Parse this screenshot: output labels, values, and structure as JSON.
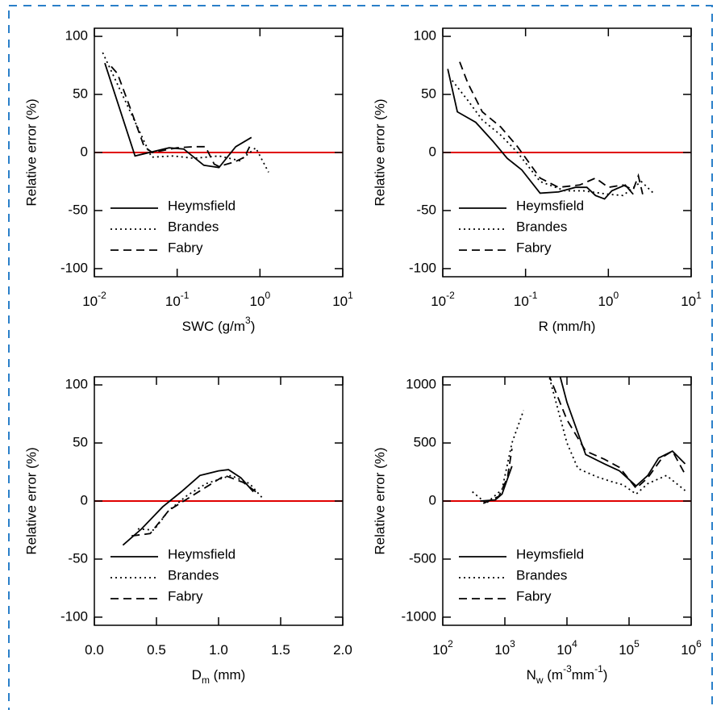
{
  "chart_data": [
    {
      "type": "line",
      "xscale": "log",
      "xlim": [
        0.01,
        10
      ],
      "ylim": [
        -107,
        107
      ],
      "xticks": [
        {
          "value": 0.01,
          "label": "10",
          "exponent": "-2"
        },
        {
          "value": 0.1,
          "label": "10",
          "exponent": "-1"
        },
        {
          "value": 1,
          "label": "10",
          "exponent": "0"
        },
        {
          "value": 10,
          "label": "10",
          "exponent": "1"
        }
      ],
      "yticks": [
        100,
        50,
        0,
        -50,
        -100
      ],
      "xlabel": [
        {
          "text": "SWC (g/m"
        },
        {
          "text": "3",
          "sup": true
        },
        {
          "text": ")"
        }
      ],
      "ylabel": "Relative error (%)",
      "reference_line": {
        "value": 0,
        "color": "#e00000"
      },
      "legend": "lower left",
      "series": [
        {
          "name": "Heymsfield",
          "color": "#000000",
          "dash": "solid",
          "x": [
            0.0134,
            0.031,
            0.08,
            0.12,
            0.21,
            0.32,
            0.51,
            0.79
          ],
          "values": [
            77,
            -3,
            4,
            3,
            -11,
            -13,
            5,
            13
          ]
        },
        {
          "name": "Brandes",
          "color": "#000000",
          "dash": "dotted",
          "x": [
            0.0126,
            0.049,
            0.09,
            0.16,
            0.32,
            0.57,
            0.89,
            1.27
          ],
          "values": [
            86,
            -4,
            -3,
            -5,
            -3,
            -7,
            4,
            -17
          ]
        },
        {
          "name": "Fabry",
          "color": "#000000",
          "dash": "dashed",
          "x": [
            0.016,
            0.019,
            0.025,
            0.04,
            0.05,
            0.1,
            0.16,
            0.22,
            0.28,
            0.32,
            0.5,
            0.65,
            0.75
          ],
          "values": [
            74,
            68,
            45,
            5,
            0,
            4,
            5,
            5,
            -10,
            -12,
            -8,
            -4,
            5
          ]
        }
      ]
    },
    {
      "type": "line",
      "xscale": "log",
      "xlim": [
        0.01,
        10
      ],
      "ylim": [
        -107,
        107
      ],
      "xticks": [
        {
          "value": 0.01,
          "label": "10",
          "exponent": "-2"
        },
        {
          "value": 0.1,
          "label": "10",
          "exponent": "-1"
        },
        {
          "value": 1,
          "label": "10",
          "exponent": "0"
        },
        {
          "value": 10,
          "label": "10",
          "exponent": "1"
        }
      ],
      "yticks": [
        100,
        50,
        0,
        -50,
        -100
      ],
      "xlabel": [
        {
          "text": "R (mm/h)"
        }
      ],
      "ylabel": "Relative error (%)",
      "reference_line": {
        "value": 0,
        "color": "#e00000"
      },
      "legend": "lower left",
      "series": [
        {
          "name": "Heymsfield",
          "color": "#000000",
          "dash": "solid",
          "x": [
            0.0115,
            0.015,
            0.025,
            0.04,
            0.06,
            0.09,
            0.15,
            0.25,
            0.4,
            0.55,
            0.7,
            0.9,
            1.1,
            1.6,
            2.0
          ],
          "values": [
            72,
            35,
            26,
            10,
            -5,
            -15,
            -35,
            -34,
            -30,
            -30,
            -37,
            -40,
            -33,
            -28,
            -36
          ]
        },
        {
          "name": "Brandes",
          "color": "#000000",
          "dash": "dotted",
          "x": [
            0.013,
            0.02,
            0.03,
            0.05,
            0.08,
            0.15,
            0.3,
            0.5,
            1.0,
            1.5,
            2.5,
            3.5
          ],
          "values": [
            62,
            45,
            28,
            15,
            0,
            -25,
            -33,
            -33,
            -36,
            -37,
            -25,
            -35
          ]
        },
        {
          "name": "Fabry",
          "color": "#000000",
          "dash": "dashed",
          "x": [
            0.016,
            0.02,
            0.03,
            0.05,
            0.08,
            0.15,
            0.25,
            0.45,
            0.7,
            1.0,
            1.5,
            2.0,
            2.3,
            2.6
          ],
          "values": [
            78,
            60,
            35,
            22,
            5,
            -22,
            -30,
            -28,
            -22,
            -30,
            -28,
            -32,
            -20,
            -36
          ]
        }
      ]
    },
    {
      "type": "line",
      "xscale": "linear",
      "xlim": [
        0,
        2
      ],
      "ylim": [
        -107,
        107
      ],
      "xticks": [
        {
          "value": 0,
          "label": "0.0"
        },
        0.5,
        {
          "value": 1,
          "label": "1.0"
        },
        1.5,
        {
          "value": 2,
          "label": "2.0"
        }
      ],
      "yticks": [
        100,
        50,
        0,
        -50,
        -100
      ],
      "xlabel": [
        {
          "text": "D"
        },
        {
          "text": "m",
          "sub": true
        },
        {
          "text": " (mm)"
        }
      ],
      "ylabel": "Relative error (%)",
      "reference_line": {
        "value": 0,
        "color": "#e00000"
      },
      "legend": "lower left",
      "series": [
        {
          "name": "Heymsfield",
          "color": "#000000",
          "dash": "solid",
          "x": [
            0.23,
            0.38,
            0.55,
            0.7,
            0.85,
            1.0,
            1.08,
            1.18,
            1.28
          ],
          "values": [
            -38,
            -24,
            -5,
            8,
            22,
            26,
            27,
            20,
            8
          ]
        },
        {
          "name": "Brandes",
          "color": "#000000",
          "dash": "dotted",
          "x": [
            0.35,
            0.48,
            0.6,
            0.75,
            0.9,
            1.1,
            1.25,
            1.35
          ],
          "values": [
            -24,
            -25,
            -8,
            5,
            15,
            22,
            15,
            3
          ]
        },
        {
          "name": "Fabry",
          "color": "#000000",
          "dash": "dashed",
          "x": [
            0.3,
            0.45,
            0.6,
            0.75,
            0.9,
            1.05,
            1.2,
            1.3
          ],
          "values": [
            -30,
            -28,
            -8,
            2,
            12,
            22,
            16,
            8
          ]
        }
      ]
    },
    {
      "type": "line",
      "xscale": "log",
      "xlim": [
        100,
        1000000
      ],
      "ylim": [
        -1070,
        1070
      ],
      "xticks": [
        {
          "value": 100,
          "label": "10",
          "exponent": "2"
        },
        {
          "value": 1000,
          "label": "10",
          "exponent": "3"
        },
        {
          "value": 10000,
          "label": "10",
          "exponent": "4"
        },
        {
          "value": 100000,
          "label": "10",
          "exponent": "5"
        },
        {
          "value": 1000000,
          "label": "10",
          "exponent": "6"
        }
      ],
      "yticks": [
        1000,
        500,
        0,
        -500,
        -1000
      ],
      "xlabel": [
        {
          "text": "N"
        },
        {
          "text": "w",
          "sub": true
        },
        {
          "text": " (m"
        },
        {
          "text": "-3",
          "sup": true
        },
        {
          "text": "mm"
        },
        {
          "text": "-1",
          "sup": true
        },
        {
          "text": ")"
        }
      ],
      "ylabel": "Relative error (%)",
      "reference_line": {
        "value": 0,
        "color": "#e00000"
      },
      "legend": "lower left",
      "series": [
        {
          "name": "Heymsfield",
          "color": "#000000",
          "dash": "solid",
          "x": [
            400,
            700,
            900,
            1300,
            3000,
            6000,
            10000,
            20000,
            40000,
            70000,
            130000,
            200000,
            300000,
            500000,
            800000
          ],
          "values": [
            0,
            10,
            60,
            300,
            null,
            1300,
            850,
            400,
            320,
            260,
            130,
            220,
            370,
            430,
            320
          ]
        },
        {
          "name": "Brandes",
          "color": "#000000",
          "dash": "dotted",
          "x": [
            300,
            500,
            900,
            1300,
            2000,
            3000,
            5000,
            10000,
            15000,
            30000,
            50000,
            80000,
            130000,
            200000,
            400000,
            800000
          ],
          "values": [
            80,
            -20,
            100,
            500,
            780,
            null,
            1100,
            500,
            280,
            210,
            170,
            140,
            60,
            150,
            220,
            90
          ]
        },
        {
          "name": "Fabry",
          "color": "#000000",
          "dash": "dashed",
          "x": [
            450,
            800,
            1100,
            1300,
            3000,
            5000,
            10000,
            20000,
            40000,
            70000,
            130000,
            200000,
            350000,
            500000,
            800000
          ],
          "values": [
            -20,
            40,
            200,
            450,
            null,
            1100,
            700,
            430,
            360,
            290,
            110,
            200,
            380,
            430,
            230
          ]
        }
      ]
    }
  ]
}
